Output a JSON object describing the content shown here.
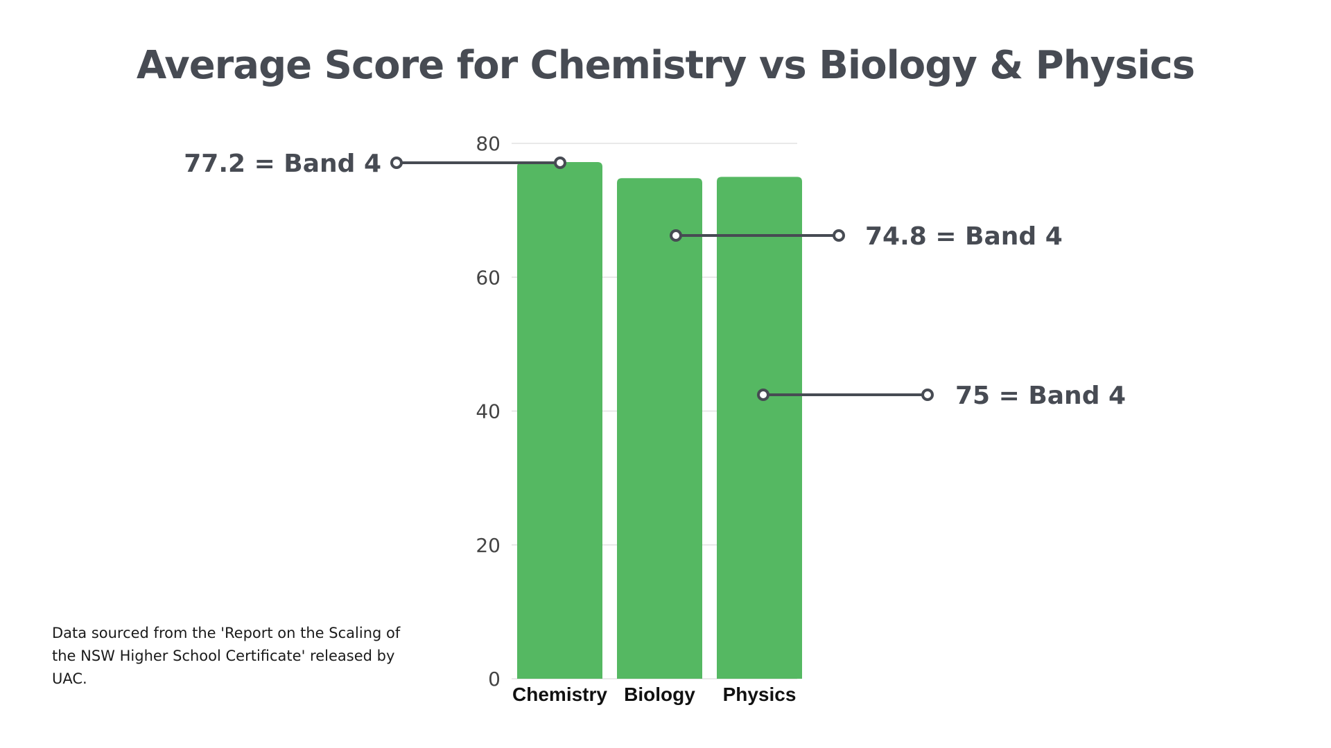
{
  "chart_data": {
    "type": "bar",
    "title": "Average Score for Chemistry vs Biology & Physics",
    "categories": [
      "Chemistry",
      "Biology",
      "Physics"
    ],
    "values": [
      77.2,
      74.8,
      75
    ],
    "ylim": [
      0,
      80
    ],
    "yticks": [
      0,
      20,
      40,
      60,
      80
    ],
    "xlabel": "",
    "ylabel": "",
    "grid": true,
    "bar_color": "#55b862",
    "annotations": [
      {
        "category": "Chemistry",
        "text": "77.2 = Band 4",
        "side": "left"
      },
      {
        "category": "Biology",
        "text": "74.8 = Band 4",
        "side": "right"
      },
      {
        "category": "Physics",
        "text": "75 = Band 4",
        "side": "right"
      }
    ]
  },
  "source_note": "Data sourced from the 'Report on the Scaling of the NSW Higher School Certificate' released by UAC.",
  "colors": {
    "title": "#474b53",
    "callout": "#474b53",
    "grid": "#e2e2e2"
  }
}
